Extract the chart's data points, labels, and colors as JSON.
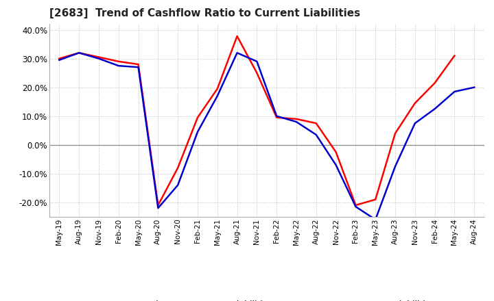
{
  "title": "[2683]  Trend of Cashflow Ratio to Current Liabilities",
  "title_fontsize": 11,
  "x_labels": [
    "May-19",
    "Aug-19",
    "Nov-19",
    "Feb-20",
    "May-20",
    "Aug-20",
    "Nov-20",
    "Feb-21",
    "May-21",
    "Aug-21",
    "Nov-21",
    "Feb-22",
    "May-22",
    "Aug-22",
    "Nov-22",
    "Feb-23",
    "May-23",
    "Aug-23",
    "Nov-23",
    "Feb-24",
    "May-24",
    "Aug-24"
  ],
  "operating_cf": [
    0.3,
    0.32,
    0.305,
    0.29,
    0.28,
    -0.21,
    -0.08,
    0.095,
    0.195,
    0.378,
    0.25,
    0.095,
    0.09,
    0.075,
    -0.025,
    -0.21,
    -0.19,
    0.04,
    0.145,
    0.215,
    0.31,
    null
  ],
  "free_cf": [
    0.295,
    0.32,
    0.3,
    0.275,
    0.27,
    -0.22,
    -0.14,
    0.045,
    0.17,
    0.32,
    0.29,
    0.1,
    0.08,
    0.035,
    -0.07,
    -0.215,
    -0.26,
    -0.075,
    0.075,
    0.125,
    0.185,
    0.2
  ],
  "ylim": [
    -0.25,
    0.42
  ],
  "yticks": [
    -0.2,
    -0.1,
    0.0,
    0.1,
    0.2,
    0.3,
    0.4
  ],
  "operating_color": "#ff0000",
  "free_color": "#0000cc",
  "grid_color": "#bbbbbb",
  "zero_line_color": "#888888",
  "background_color": "#ffffff",
  "legend_labels": [
    "Operating CF to Current Liabilities",
    "Free CF to Current Liabilities"
  ]
}
